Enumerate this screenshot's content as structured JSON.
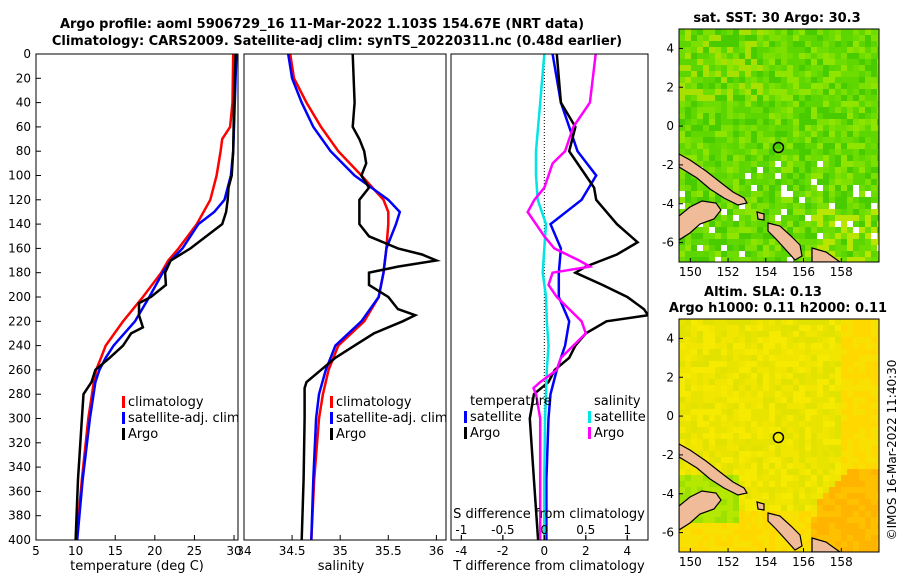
{
  "title_line1": "Argo profile: aoml 5906729_16 11-Mar-2022 1.103S 154.67E (NRT data)",
  "title_line2": "Climatology: CARS2009. Satellite-adj clim: synTS_20220311.nc (0.48d earlier)",
  "watermark": "©IMOS 16-Mar-2022 11:40:30",
  "colors": {
    "climatology": "#ff0000",
    "satellite": "#0000ff",
    "argo": "#000000",
    "s_satellite": "#00e5e5",
    "s_argo": "#ff00ff",
    "land": "#f0bb98"
  },
  "depth_ticks": [
    0,
    20,
    40,
    60,
    80,
    100,
    120,
    140,
    160,
    180,
    200,
    220,
    240,
    260,
    280,
    300,
    320,
    340,
    360,
    380,
    400
  ],
  "chart_data": [
    {
      "type": "line",
      "id": "temperature",
      "xlabel": "temperature (deg C)",
      "ylabel": "",
      "xlim": [
        5,
        30.5
      ],
      "ylim": [
        0,
        400
      ],
      "y_inverted": true,
      "xticks": [
        5,
        10,
        15,
        20,
        25,
        30
      ],
      "xtick_labels": [
        "5",
        "10",
        "15",
        "20",
        "25",
        "30"
      ],
      "legend": [
        "climatology",
        "satellite-adj. clim",
        "Argo"
      ],
      "series": [
        {
          "name": "climatology",
          "depth": [
            0,
            40,
            60,
            70,
            80,
            100,
            120,
            140,
            160,
            170,
            180,
            200,
            220,
            240,
            250,
            260,
            270,
            300,
            350,
            400
          ],
          "values": [
            29.9,
            29.8,
            29.5,
            28.5,
            28.3,
            27.8,
            27.0,
            25.3,
            23.0,
            21.7,
            20.8,
            18.5,
            16.0,
            13.8,
            13.2,
            12.6,
            12.3,
            11.6,
            10.8,
            10.1
          ]
        },
        {
          "name": "satellite-adj. clim",
          "depth": [
            0,
            40,
            80,
            100,
            120,
            130,
            140,
            160,
            170,
            180,
            200,
            220,
            240,
            250,
            260,
            270,
            300,
            350,
            400
          ],
          "values": [
            30.3,
            30.1,
            29.9,
            29.6,
            28.8,
            27.5,
            25.5,
            23.5,
            22.0,
            21.0,
            19.3,
            17.5,
            14.8,
            13.8,
            13.0,
            12.5,
            11.8,
            10.9,
            10.2
          ]
        },
        {
          "name": "Argo",
          "depth": [
            0,
            40,
            80,
            100,
            110,
            120,
            130,
            140,
            150,
            160,
            170,
            180,
            190,
            200,
            205,
            215,
            225,
            230,
            240,
            250,
            260,
            270,
            280,
            300,
            350,
            400
          ],
          "values": [
            30.2,
            30.0,
            29.9,
            29.7,
            29.3,
            29.2,
            29.0,
            28.5,
            26.5,
            24.5,
            22.0,
            21.3,
            21.4,
            19.5,
            18.0,
            18.0,
            18.5,
            17.0,
            16.0,
            14.3,
            12.5,
            12.0,
            11.0,
            10.8,
            10.3,
            10.0
          ]
        }
      ]
    },
    {
      "type": "line",
      "id": "salinity",
      "xlabel": "salinity",
      "ylabel": "",
      "xlim": [
        34,
        36.1
      ],
      "ylim": [
        0,
        400
      ],
      "y_inverted": true,
      "xticks": [
        34,
        34.5,
        35,
        35.5,
        36
      ],
      "xtick_labels": [
        "34",
        "34.5",
        "35",
        "35.5",
        "36"
      ],
      "legend": [
        "climatology",
        "satellite-adj. clim",
        "Argo"
      ],
      "series": [
        {
          "name": "climatology",
          "depth": [
            0,
            20,
            40,
            60,
            80,
            100,
            120,
            130,
            140,
            160,
            180,
            200,
            220,
            240,
            260,
            280,
            300,
            350,
            400
          ],
          "values": [
            34.48,
            34.52,
            34.65,
            34.8,
            34.98,
            35.22,
            35.45,
            35.5,
            35.5,
            35.48,
            35.45,
            35.4,
            35.25,
            34.98,
            34.88,
            34.82,
            34.78,
            34.73,
            34.7
          ]
        },
        {
          "name": "satellite-adj. clim",
          "depth": [
            0,
            20,
            40,
            60,
            80,
            100,
            120,
            130,
            140,
            160,
            180,
            200,
            220,
            240,
            260,
            280,
            300,
            350,
            400
          ],
          "values": [
            34.46,
            34.5,
            34.6,
            34.72,
            34.9,
            35.15,
            35.5,
            35.62,
            35.58,
            35.48,
            35.45,
            35.4,
            35.22,
            34.95,
            34.85,
            34.78,
            34.75,
            34.72,
            34.7
          ]
        },
        {
          "name": "Argo",
          "depth": [
            0,
            40,
            60,
            70,
            80,
            90,
            100,
            110,
            120,
            140,
            150,
            160,
            165,
            170,
            175,
            180,
            190,
            200,
            210,
            215,
            220,
            230,
            240,
            250,
            260,
            270,
            275,
            300,
            350,
            400
          ],
          "values": [
            35.13,
            35.15,
            35.13,
            35.2,
            35.25,
            35.27,
            35.22,
            35.3,
            35.2,
            35.2,
            35.3,
            35.6,
            35.85,
            36.0,
            35.6,
            35.3,
            35.3,
            35.5,
            35.6,
            35.78,
            35.65,
            35.35,
            35.15,
            34.95,
            34.8,
            34.65,
            34.63,
            34.63,
            34.62,
            34.6
          ]
        }
      ]
    },
    {
      "type": "line",
      "id": "differences",
      "xlabel": "T difference from climatology",
      "xlabel_top": "S difference from climatology",
      "xlim": [
        -4.5,
        5
      ],
      "ylim": [
        0,
        400
      ],
      "y_inverted": true,
      "xticks": [
        -4,
        -2,
        0,
        2,
        4
      ],
      "xtick_labels": [
        "-4",
        "-2",
        "0",
        "2",
        "4"
      ],
      "s_scale": 4,
      "s_ticks": [
        -1,
        -0.5,
        0,
        0.5,
        1
      ],
      "s_tick_labels": [
        "-1",
        "-0.5",
        "0",
        "0.5",
        "1"
      ],
      "legend_temperature_title": "temperature",
      "legend_salinity_title": "salinity",
      "legend_temperature": [
        "satellite",
        "Argo"
      ],
      "legend_salinity": [
        "satellite",
        "Argo"
      ],
      "series": [
        {
          "name": "T satellite",
          "depth": [
            0,
            40,
            80,
            100,
            120,
            140,
            160,
            180,
            200,
            220,
            240,
            260,
            280,
            300,
            350,
            400
          ],
          "values": [
            0.4,
            0.8,
            1.6,
            2.5,
            1.8,
            0.3,
            0.8,
            0.7,
            0.7,
            1.2,
            1.0,
            0.6,
            0.3,
            0.2,
            0.1,
            0.1
          ]
        },
        {
          "name": "T Argo",
          "depth": [
            0,
            40,
            60,
            80,
            100,
            110,
            120,
            140,
            155,
            165,
            175,
            180,
            190,
            200,
            210,
            215,
            220,
            230,
            240,
            250,
            260,
            270,
            280,
            290,
            300,
            350,
            400
          ],
          "values": [
            0.6,
            0.8,
            1.5,
            1.2,
            2.0,
            2.4,
            2.5,
            3.5,
            4.5,
            3.5,
            2.0,
            1.5,
            2.8,
            4.0,
            4.8,
            5.0,
            3.0,
            2.0,
            1.5,
            1.2,
            0.5,
            0.2,
            -0.5,
            -0.6,
            -0.7,
            -0.5,
            -0.3
          ]
        },
        {
          "name": "S satellite",
          "depth": [
            0,
            40,
            80,
            100,
            120,
            140,
            160,
            180,
            200,
            220,
            240,
            260,
            280,
            300,
            350,
            400
          ],
          "values": [
            0.0,
            -0.05,
            -0.1,
            -0.1,
            -0.08,
            0.02,
            0.0,
            -0.02,
            0.02,
            0.03,
            0.05,
            0.03,
            0.02,
            0.01,
            0.0,
            0.0
          ]
        },
        {
          "name": "S Argo",
          "depth": [
            0,
            40,
            60,
            80,
            90,
            100,
            110,
            120,
            130,
            140,
            150,
            160,
            170,
            175,
            180,
            190,
            200,
            210,
            220,
            230,
            240,
            250,
            260,
            270,
            275,
            280,
            300,
            350,
            400
          ],
          "values": [
            0.62,
            0.55,
            0.35,
            0.25,
            0.1,
            0.05,
            0.0,
            -0.12,
            -0.2,
            -0.1,
            0.0,
            0.12,
            0.42,
            0.55,
            0.1,
            0.05,
            0.15,
            0.3,
            0.45,
            0.5,
            0.35,
            0.2,
            0.15,
            -0.05,
            -0.13,
            -0.1,
            -0.05,
            -0.05,
            -0.05
          ]
        }
      ]
    },
    {
      "type": "heatmap",
      "id": "sst_map",
      "title": "sat. SST: 30 Argo: 30.3",
      "xlim": [
        149.4,
        160
      ],
      "ylim": [
        -7,
        5
      ],
      "xticks": [
        150,
        152,
        154,
        156,
        158
      ],
      "xtick_labels": [
        "150",
        "152",
        "154",
        "156",
        "158"
      ],
      "yticks": [
        -6,
        -4,
        -2,
        0,
        2,
        4
      ],
      "ytick_labels": [
        "-6",
        "-4",
        "-2",
        "0",
        "2",
        "4"
      ],
      "marker": [
        154.67,
        -1.103
      ]
    },
    {
      "type": "heatmap",
      "id": "sla_map",
      "title": "Altim. SLA: 0.13",
      "subtitle": "Argo h1000: 0.11 h2000: 0.11",
      "xlim": [
        149.4,
        160
      ],
      "ylim": [
        -7,
        5
      ],
      "xticks": [
        150,
        152,
        154,
        156,
        158
      ],
      "xtick_labels": [
        "150",
        "152",
        "154",
        "156",
        "158"
      ],
      "yticks": [
        -6,
        -4,
        -2,
        0,
        2,
        4
      ],
      "ytick_labels": [
        "-6",
        "-4",
        "-2",
        "0",
        "2",
        "4"
      ],
      "marker": [
        154.67,
        -1.103
      ]
    }
  ]
}
